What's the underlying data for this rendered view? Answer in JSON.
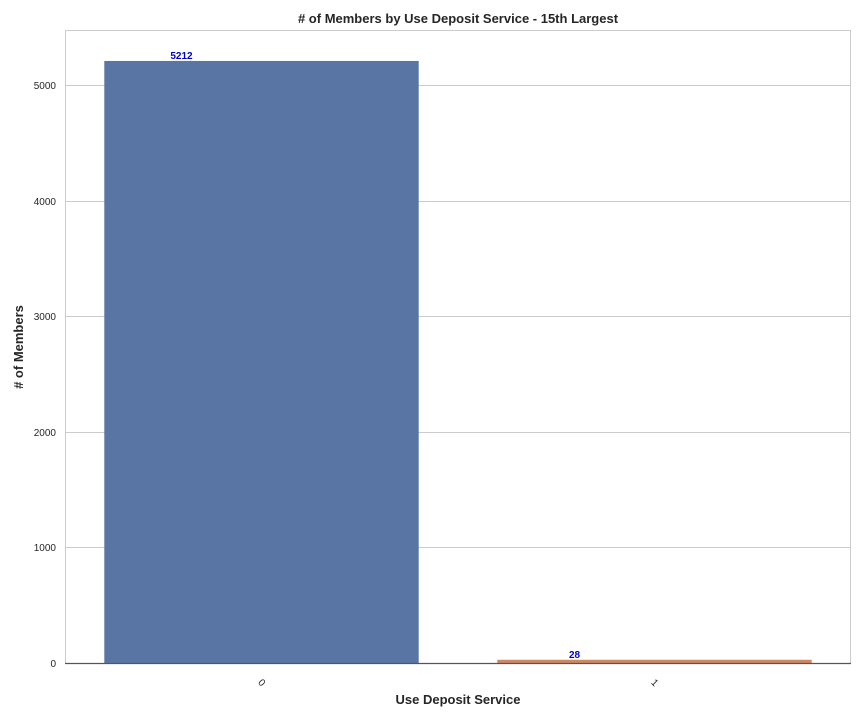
{
  "chart_data": {
    "type": "bar",
    "title": "# of Members by Use Deposit Service - 15th Largest",
    "xlabel": "Use Deposit Service",
    "ylabel": "# of Members",
    "categories": [
      "0",
      "1"
    ],
    "values": [
      5212,
      28
    ],
    "data_labels": [
      "5212",
      "28"
    ],
    "ylim": [
      0,
      5480
    ],
    "yticks": [
      0,
      1000,
      2000,
      3000,
      4000,
      5000
    ],
    "ytick_labels": [
      "0",
      "1000",
      "2000",
      "3000",
      "4000",
      "5000"
    ],
    "bar_colors": [
      "#5975a4",
      "#cc8963"
    ],
    "data_label_color": "#0000cc",
    "grid": true,
    "legend": "none"
  }
}
